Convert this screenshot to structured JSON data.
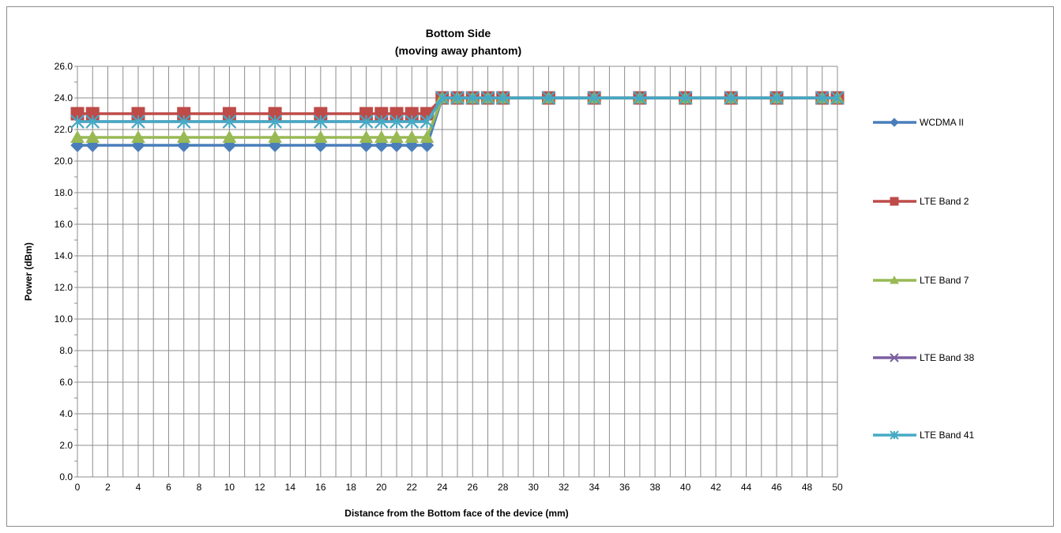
{
  "chart_data": {
    "type": "line",
    "title": "Bottom Side",
    "subtitle": "(moving away phantom)",
    "xlabel": "Distance from the Bottom face of the device (mm)",
    "ylabel": "Power (dBm)",
    "xlim": [
      0,
      50
    ],
    "ylim": [
      0,
      26
    ],
    "x_ticks": [
      0,
      2,
      4,
      6,
      8,
      10,
      12,
      14,
      16,
      18,
      20,
      22,
      24,
      26,
      28,
      30,
      32,
      34,
      36,
      38,
      40,
      42,
      44,
      46,
      48,
      50
    ],
    "y_ticks": [
      0,
      2,
      4,
      6,
      8,
      10,
      12,
      14,
      16,
      18,
      20,
      22,
      24,
      26
    ],
    "y_tick_labels": [
      "0.0",
      "2.0",
      "4.0",
      "6.0",
      "8.0",
      "10.0",
      "12.0",
      "14.0",
      "16.0",
      "18.0",
      "20.0",
      "22.0",
      "24.0",
      "26.0"
    ],
    "grid": true,
    "legend_position": "right",
    "x": [
      0,
      1,
      4,
      7,
      10,
      13,
      16,
      19,
      20,
      21,
      22,
      23,
      24,
      25,
      26,
      27,
      28,
      31,
      34,
      37,
      40,
      43,
      46,
      49,
      50
    ],
    "series": [
      {
        "name": "WCDMA II",
        "color": "#4a7ebb",
        "marker": "diamond",
        "values": [
          21,
          21,
          21,
          21,
          21,
          21,
          21,
          21,
          21,
          21,
          21,
          21,
          24,
          24,
          24,
          24,
          24,
          24,
          24,
          24,
          24,
          24,
          24,
          24,
          24
        ]
      },
      {
        "name": "LTE Band 2",
        "color": "#be4b48",
        "marker": "square",
        "values": [
          23,
          23,
          23,
          23,
          23,
          23,
          23,
          23,
          23,
          23,
          23,
          23,
          24,
          24,
          24,
          24,
          24,
          24,
          24,
          24,
          24,
          24,
          24,
          24,
          24
        ]
      },
      {
        "name": "LTE Band 7",
        "color": "#98b954",
        "marker": "triangle",
        "values": [
          21.5,
          21.5,
          21.5,
          21.5,
          21.5,
          21.5,
          21.5,
          21.5,
          21.5,
          21.5,
          21.5,
          21.5,
          24,
          24,
          24,
          24,
          24,
          24,
          24,
          24,
          24,
          24,
          24,
          24,
          24
        ]
      },
      {
        "name": "LTE Band 38",
        "color": "#7d60a0",
        "marker": "x",
        "values": [
          22.5,
          22.5,
          22.5,
          22.5,
          22.5,
          22.5,
          22.5,
          22.5,
          22.5,
          22.5,
          22.5,
          22.5,
          24,
          24,
          24,
          24,
          24,
          24,
          24,
          24,
          24,
          24,
          24,
          24,
          24
        ]
      },
      {
        "name": "LTE Band 41",
        "color": "#46aac5",
        "marker": "star",
        "values": [
          22.5,
          22.5,
          22.5,
          22.5,
          22.5,
          22.5,
          22.5,
          22.5,
          22.5,
          22.5,
          22.5,
          22.5,
          24,
          24,
          24,
          24,
          24,
          24,
          24,
          24,
          24,
          24,
          24,
          24,
          24
        ]
      }
    ]
  }
}
